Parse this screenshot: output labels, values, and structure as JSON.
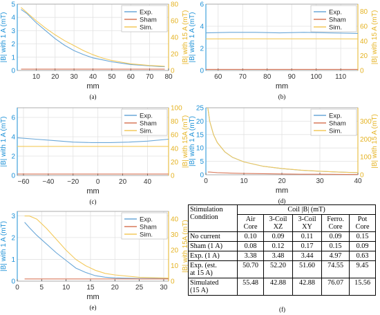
{
  "chart_data": [
    {
      "type": "line",
      "caption": "(a)",
      "xlabel": "mm",
      "ylabel": "|B| with 1 A (mT)",
      "ylabel_right": "|B| with 15 A (mT)",
      "xlim": [
        0,
        80
      ],
      "ylim": [
        0,
        5
      ],
      "ylim_right": [
        0,
        80
      ],
      "xticks": [
        10,
        20,
        30,
        40,
        50,
        60,
        70,
        80
      ],
      "yticks": [
        0,
        1,
        2,
        3,
        4,
        5
      ],
      "yticks_right": [
        0,
        20,
        40,
        60,
        80
      ],
      "legend": [
        "Exp.",
        "Sham",
        "Sim."
      ],
      "legend_position": "top-right",
      "grid": true,
      "x": [
        2,
        5,
        10,
        15,
        20,
        25,
        30,
        35,
        40,
        45,
        50,
        55,
        60,
        65,
        70,
        75,
        78
      ],
      "series": [
        {
          "name": "Exp.",
          "axis": "left",
          "values": [
            4.6,
            4.3,
            3.6,
            3.0,
            2.4,
            1.9,
            1.5,
            1.2,
            0.95,
            0.8,
            0.65,
            0.55,
            0.45,
            0.4,
            0.35,
            0.3,
            0.28
          ]
        },
        {
          "name": "Sham",
          "axis": "left",
          "values": [
            0.1,
            0.1,
            0.1,
            0.1,
            0.1,
            0.1,
            0.1,
            0.1,
            0.1,
            0.1,
            0.1,
            0.1,
            0.1,
            0.1,
            0.1,
            0.1,
            0.1
          ]
        },
        {
          "name": "Sim.",
          "axis": "right",
          "values": [
            76,
            70,
            60,
            51,
            43,
            36,
            30,
            24,
            19,
            15,
            12,
            10,
            8,
            7,
            6,
            5.5,
            5
          ]
        }
      ]
    },
    {
      "type": "line",
      "caption": "(b)",
      "xlabel": "mm",
      "ylabel": "|B| with 1 A (mT)",
      "ylabel_right": "|B| with 15 A (mT)",
      "xlim": [
        55,
        117
      ],
      "ylim": [
        0,
        6
      ],
      "ylim_right": [
        0,
        90
      ],
      "xticks": [
        60,
        70,
        80,
        90,
        100,
        110
      ],
      "yticks": [
        0,
        2,
        4,
        6
      ],
      "yticks_right": [
        0,
        20,
        40,
        60,
        80
      ],
      "legend": [
        "Exp.",
        "Sham",
        "Sim."
      ],
      "legend_position": "top-right",
      "grid": true,
      "x": [
        55,
        65,
        75,
        85,
        95,
        105,
        117
      ],
      "series": [
        {
          "name": "Exp.",
          "axis": "left",
          "values": [
            3.4,
            3.45,
            3.45,
            3.4,
            3.45,
            3.4,
            3.35
          ]
        },
        {
          "name": "Sham",
          "axis": "left",
          "values": [
            0.1,
            0.1,
            0.1,
            0.1,
            0.1,
            0.1,
            0.1
          ]
        },
        {
          "name": "Sim.",
          "axis": "right",
          "values": [
            42.8,
            42.9,
            42.9,
            42.9,
            42.9,
            42.9,
            42.8
          ]
        }
      ]
    },
    {
      "type": "line",
      "caption": "(c)",
      "xlabel": "mm",
      "ylabel": "|B| with 1 A (mT)",
      "ylabel_right": "|B| with 15A (mT)",
      "xlim": [
        -65,
        57
      ],
      "ylim": [
        0,
        7
      ],
      "ylim_right": [
        0,
        100
      ],
      "xticks": [
        -60,
        -40,
        -20,
        0,
        20,
        40
      ],
      "yticks": [
        0,
        2,
        4,
        6
      ],
      "yticks_right": [
        0,
        20,
        40,
        60,
        80,
        100
      ],
      "legend": [
        "Exp.",
        "Sham",
        "Sim."
      ],
      "legend_position": "top-right",
      "grid": true,
      "x": [
        -65,
        -50,
        -35,
        -20,
        -5,
        10,
        25,
        40,
        57
      ],
      "series": [
        {
          "name": "Exp.",
          "axis": "left",
          "values": [
            3.9,
            3.75,
            3.6,
            3.45,
            3.4,
            3.4,
            3.45,
            3.55,
            3.75
          ]
        },
        {
          "name": "Sham",
          "axis": "left",
          "values": [
            0.15,
            0.15,
            0.15,
            0.15,
            0.15,
            0.15,
            0.15,
            0.15,
            0.15
          ]
        },
        {
          "name": "Sim.",
          "axis": "right",
          "values": [
            43,
            43,
            43,
            43,
            43,
            43,
            43,
            43,
            43
          ]
        }
      ]
    },
    {
      "type": "line",
      "caption": "(d)",
      "xlabel": "mm",
      "ylabel": "|B| with 1 A (mT)",
      "ylabel_right": "|B| with 15 A (mT)",
      "xlim": [
        0,
        40
      ],
      "ylim": [
        0,
        25
      ],
      "ylim_right": [
        0,
        375
      ],
      "xticks": [
        0,
        10,
        20,
        30,
        40
      ],
      "yticks": [
        0,
        5,
        10,
        15,
        20,
        25
      ],
      "yticks_right": [
        0,
        100,
        200,
        300
      ],
      "legend": [
        "Exp.",
        "Sham",
        "Sim."
      ],
      "legend_position": "top-right",
      "grid": true,
      "x": [
        0.5,
        1,
        2,
        3,
        5,
        7,
        10,
        15,
        20,
        25,
        30,
        35,
        40
      ],
      "series": [
        {
          "name": "Exp.",
          "axis": "left",
          "values": [
            25,
            20,
            15,
            12,
            8.5,
            6.5,
            4.8,
            3.2,
            2.3,
            1.7,
            1.3,
            1.0,
            0.8
          ]
        },
        {
          "name": "Sham",
          "axis": "left",
          "values": [
            1.0,
            1.0,
            0.9,
            0.8,
            0.7,
            0.6,
            0.5,
            0.4,
            0.3,
            0.2,
            0.2,
            0.15,
            0.1
          ]
        },
        {
          "name": "Sim.",
          "axis": "right",
          "values": [
            375,
            300,
            225,
            180,
            128,
            98,
            72,
            48,
            35,
            26,
            20,
            15,
            12
          ]
        }
      ]
    },
    {
      "type": "line",
      "caption": "(e)",
      "xlabel": "mm",
      "ylabel": "|B| with 1 A (mT)",
      "ylabel_right": "|B| with 15A (mT)",
      "xlim": [
        0,
        31
      ],
      "ylim": [
        0,
        3.2
      ],
      "ylim_right": [
        0,
        45
      ],
      "xticks": [
        0,
        5,
        10,
        15,
        20,
        25,
        30
      ],
      "yticks": [
        0,
        1,
        2,
        3
      ],
      "yticks_right": [
        0,
        10,
        20,
        30,
        40
      ],
      "legend": [
        "Exp.",
        "Sham",
        "Sim."
      ],
      "legend_position": "top-right",
      "grid": true,
      "x": [
        1.5,
        2.5,
        4,
        6,
        8,
        10,
        12,
        14,
        16,
        18,
        20,
        25,
        31
      ],
      "series": [
        {
          "name": "Exp.",
          "axis": "left",
          "values": [
            2.7,
            2.45,
            2.1,
            1.7,
            1.3,
            0.95,
            0.6,
            0.4,
            0.25,
            0.18,
            0.15,
            0.12,
            0.12
          ]
        },
        {
          "name": "Sham",
          "axis": "left",
          "values": [
            0.1,
            0.1,
            0.1,
            0.1,
            0.1,
            0.1,
            0.1,
            0.1,
            0.1,
            0.1,
            0.1,
            0.1,
            0.1
          ]
        },
        {
          "name": "Sim.",
          "axis": "right",
          "values": [
            42,
            42,
            40,
            34,
            27,
            20,
            14,
            10,
            7,
            5,
            4,
            2.5,
            2
          ]
        }
      ]
    },
    {
      "type": "table",
      "caption": "(f)",
      "group_header": "Coil |B| (mT)",
      "row_header": [
        "Stimulation",
        "Condition"
      ],
      "columns": [
        [
          "Air",
          "Core"
        ],
        [
          "3-Coil",
          "XZ"
        ],
        [
          "3-Coil",
          "XY"
        ],
        [
          "Ferro.",
          "Core"
        ],
        [
          "Pot",
          "Core"
        ]
      ],
      "rows": [
        {
          "label": [
            "No current"
          ],
          "values": [
            "0.10",
            "0.09",
            "0.11",
            "0.09",
            "0.15"
          ]
        },
        {
          "label": [
            "Sham (1 A)"
          ],
          "values": [
            "0.08",
            "0.12",
            "0.17",
            "0.15",
            "0.09"
          ]
        },
        {
          "label": [
            "Exp. (1 A)"
          ],
          "values": [
            "3.38",
            "3.48",
            "3.44",
            "4.97",
            "0.63"
          ]
        },
        {
          "label": [
            "Exp. (est.",
            "at 15 A)"
          ],
          "values": [
            "50.70",
            "52.20",
            "51.60",
            "74.55",
            "9.45"
          ]
        },
        {
          "label": [
            "Simulated",
            "(15 A)"
          ],
          "values": [
            "55.48",
            "42.88",
            "42.88",
            "76.07",
            "15.56"
          ]
        }
      ]
    }
  ],
  "colors": {
    "exp": "#6aa7d8",
    "sham": "#d9785a",
    "sim": "#f3c95a",
    "axis_left": "#1a8fd6",
    "axis_right": "#e5b323",
    "grid": "#e2e2e2"
  }
}
